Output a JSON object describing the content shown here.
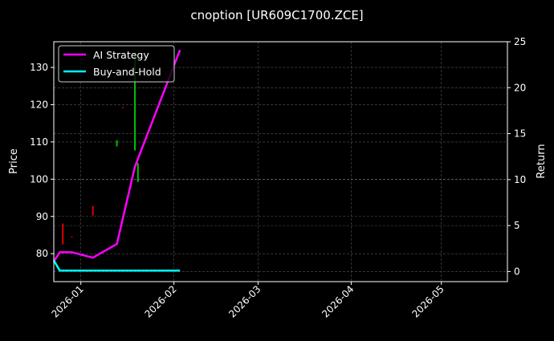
{
  "chart_data": {
    "type": "line",
    "title": "cnoption [UR609C1700.ZCE]",
    "ylabel": "Price",
    "y2label": "Return",
    "xlim": [
      "2025-12-23",
      "2026-05-23"
    ],
    "ylim": [
      72.5,
      136.9
    ],
    "y2lim": [
      -1.1,
      25.0
    ],
    "xticks": [
      "2026-01",
      "2026-02",
      "2026-03",
      "2026-04",
      "2026-05"
    ],
    "yticks": [
      80,
      90,
      100,
      110,
      120,
      130
    ],
    "y2ticks": [
      0,
      5,
      10,
      15,
      20,
      25
    ],
    "grid": true,
    "legend_position": "top-left",
    "candles": [
      {
        "date": "2025-12-26",
        "open": 88.0,
        "high": 88.2,
        "low": 82.4,
        "close": 82.6
      },
      {
        "date": "2025-12-29",
        "open": 84.6,
        "high": 84.7,
        "low": 84.4,
        "close": 84.5
      },
      {
        "date": "2026-01-05",
        "open": 92.8,
        "high": 92.8,
        "low": 90.2,
        "close": 90.3
      },
      {
        "date": "2026-01-13",
        "open": 108.8,
        "high": 110.5,
        "low": 108.8,
        "close": 110.4
      },
      {
        "date": "2026-01-15",
        "open": 119.3,
        "high": 119.4,
        "low": 119.1,
        "close": 119.2
      },
      {
        "date": "2026-01-19",
        "open": 107.8,
        "high": 134.0,
        "low": 107.6,
        "close": 133.5
      },
      {
        "date": "2026-01-20",
        "open": 99.3,
        "high": 104.4,
        "low": 99.2,
        "close": 104.2
      }
    ],
    "up_color": "#00c000",
    "down_color": "#e00000",
    "series": [
      {
        "name": "AI Strategy",
        "color": "#ff00ff",
        "axis": "right",
        "x": [
          "2025-12-23",
          "2025-12-25",
          "2025-12-29",
          "2026-01-05",
          "2026-01-13",
          "2026-01-19",
          "2026-02-03"
        ],
        "values": [
          1.1,
          2.1,
          2.1,
          1.5,
          3.0,
          11.4,
          24.1
        ]
      },
      {
        "name": "Buy-and-Hold",
        "color": "#00ffff",
        "axis": "right",
        "x": [
          "2025-12-23",
          "2025-12-25",
          "2026-02-03"
        ],
        "values": [
          1.2,
          0.1,
          0.1
        ]
      }
    ]
  }
}
